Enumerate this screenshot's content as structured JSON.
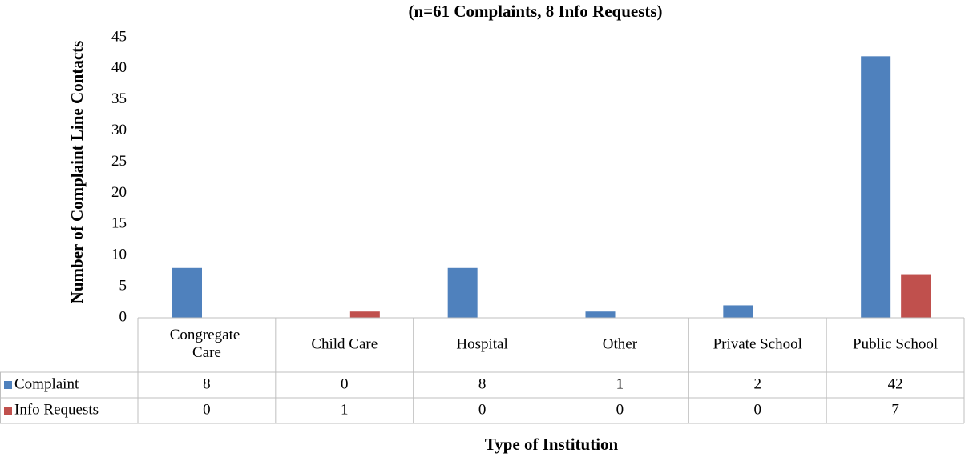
{
  "chart_data": {
    "type": "bar",
    "subtitle": "(n=61 Complaints, 8 Info Requests)",
    "y_label": "Number of Complaint Line Contacts",
    "x_label": "Type of Institution",
    "categories": [
      "Congregate Care",
      "Child Care",
      "Hospital",
      "Other",
      "Private School",
      "Public School"
    ],
    "series": [
      {
        "name": "Complaint",
        "color": "#4f81bd",
        "values": [
          8,
          0,
          8,
          1,
          2,
          42
        ]
      },
      {
        "name": "Info Requests",
        "color": "#c0504d",
        "values": [
          0,
          1,
          0,
          0,
          0,
          7
        ]
      }
    ],
    "ylim": [
      0,
      45
    ],
    "yticks": [
      0,
      5,
      10,
      15,
      20,
      25,
      30,
      35,
      40,
      45
    ],
    "grid": false,
    "data_table": true
  }
}
